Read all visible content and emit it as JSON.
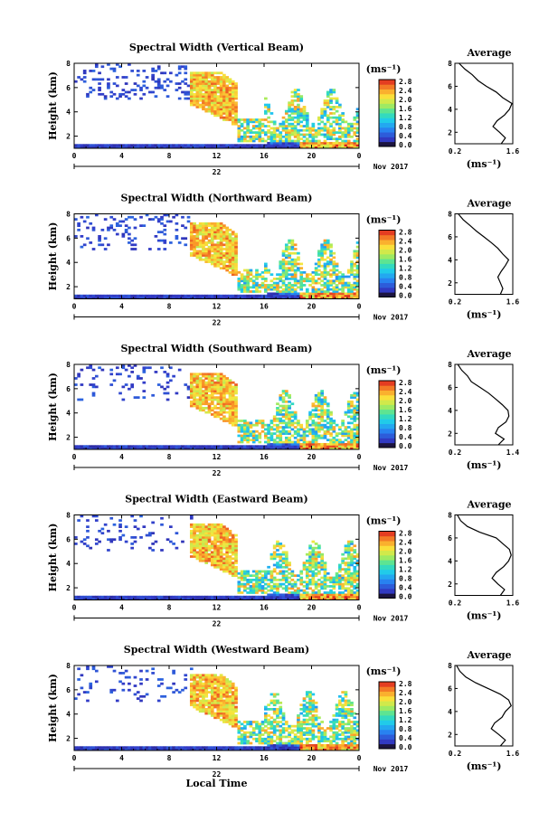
{
  "chart_data": [
    {
      "type": "heatmap",
      "title": "Spectral Width (Vertical Beam)",
      "ylabel": "Height (km)",
      "x_ticks": [
        "0",
        "4",
        "8",
        "12",
        "16",
        "20",
        "0"
      ],
      "xlim": [
        0,
        24
      ],
      "ylim": [
        1,
        8
      ],
      "y_ticks": [
        "2",
        "4",
        "6",
        "8"
      ],
      "date_label": "22",
      "month_label": "Nov 2017",
      "colorbar": {
        "unit": "(ms⁻¹)",
        "ticks": [
          "0.0",
          "0.4",
          "0.8",
          "1.2",
          "1.6",
          "2.0",
          "2.4",
          "2.8"
        ],
        "range": [
          0,
          2.8
        ]
      },
      "average": {
        "title": "Average",
        "xlabel": "(ms⁻¹)",
        "x_ticks": [
          "0.2",
          "1.6"
        ],
        "xlim": [
          0.2,
          1.6
        ],
        "y_ticks": [
          "2",
          "4",
          "6",
          "8"
        ],
        "profile": [
          [
            1.0,
            1.32
          ],
          [
            1.5,
            1.42
          ],
          [
            2.0,
            1.28
          ],
          [
            2.5,
            1.12
          ],
          [
            3.0,
            1.22
          ],
          [
            3.5,
            1.4
          ],
          [
            4.0,
            1.52
          ],
          [
            4.5,
            1.58
          ],
          [
            5.0,
            1.36
          ],
          [
            5.5,
            1.2
          ],
          [
            6.0,
            0.96
          ],
          [
            6.5,
            0.76
          ],
          [
            7.0,
            0.62
          ],
          [
            7.5,
            0.44
          ],
          [
            8.0,
            0.3
          ]
        ]
      }
    },
    {
      "type": "heatmap",
      "title": "Spectral Width (Northward Beam)",
      "ylabel": "Height (km)",
      "x_ticks": [
        "0",
        "4",
        "8",
        "12",
        "16",
        "20",
        "0"
      ],
      "xlim": [
        0,
        24
      ],
      "ylim": [
        1,
        8
      ],
      "y_ticks": [
        "2",
        "4",
        "6",
        "8"
      ],
      "date_label": "22",
      "month_label": "Nov 2017",
      "colorbar": {
        "unit": "(ms⁻¹)",
        "ticks": [
          "0.0",
          "0.4",
          "0.8",
          "1.2",
          "1.6",
          "2.0",
          "2.4",
          "2.8"
        ],
        "range": [
          0,
          2.8
        ]
      },
      "average": {
        "title": "Average",
        "xlabel": "(ms⁻¹)",
        "x_ticks": [
          "0.2",
          "1.6"
        ],
        "xlim": [
          0.2,
          1.6
        ],
        "y_ticks": [
          "2",
          "4",
          "6",
          "8"
        ],
        "profile": [
          [
            1.0,
            1.3
          ],
          [
            1.5,
            1.36
          ],
          [
            2.0,
            1.3
          ],
          [
            2.5,
            1.24
          ],
          [
            3.0,
            1.32
          ],
          [
            3.5,
            1.42
          ],
          [
            4.0,
            1.5
          ],
          [
            4.5,
            1.36
          ],
          [
            5.0,
            1.24
          ],
          [
            5.5,
            1.08
          ],
          [
            6.0,
            0.9
          ],
          [
            6.5,
            0.72
          ],
          [
            7.0,
            0.56
          ],
          [
            7.5,
            0.4
          ],
          [
            8.0,
            0.28
          ]
        ]
      }
    },
    {
      "type": "heatmap",
      "title": "Spectral Width (Southward Beam)",
      "ylabel": "Height (km)",
      "x_ticks": [
        "0",
        "4",
        "8",
        "12",
        "16",
        "20",
        "0"
      ],
      "xlim": [
        0,
        24
      ],
      "ylim": [
        1,
        8
      ],
      "y_ticks": [
        "2",
        "4",
        "6",
        "8"
      ],
      "date_label": "22",
      "month_label": "Nov 2017",
      "colorbar": {
        "unit": "(ms⁻¹)",
        "ticks": [
          "0.0",
          "0.4",
          "0.8",
          "1.2",
          "1.6",
          "2.0",
          "2.4",
          "2.8"
        ],
        "range": [
          0,
          2.8
        ]
      },
      "average": {
        "title": "Average",
        "xlabel": "(ms⁻¹)",
        "x_ticks": [
          "0.2",
          "1.4"
        ],
        "xlim": [
          0.2,
          1.4
        ],
        "y_ticks": [
          "2",
          "4",
          "6",
          "8"
        ],
        "profile": [
          [
            1.0,
            1.1
          ],
          [
            1.5,
            1.22
          ],
          [
            2.0,
            1.04
          ],
          [
            2.5,
            1.1
          ],
          [
            3.0,
            1.26
          ],
          [
            3.5,
            1.32
          ],
          [
            4.0,
            1.3
          ],
          [
            4.5,
            1.18
          ],
          [
            5.0,
            1.04
          ],
          [
            5.5,
            0.9
          ],
          [
            6.0,
            0.72
          ],
          [
            6.5,
            0.54
          ],
          [
            7.0,
            0.46
          ],
          [
            7.5,
            0.34
          ],
          [
            8.0,
            0.26
          ]
        ]
      }
    },
    {
      "type": "heatmap",
      "title": "Spectral Width (Eastward Beam)",
      "ylabel": "Height (km)",
      "x_ticks": [
        "0",
        "4",
        "8",
        "12",
        "16",
        "20",
        "0"
      ],
      "xlim": [
        0,
        24
      ],
      "ylim": [
        1,
        8
      ],
      "y_ticks": [
        "2",
        "4",
        "6",
        "8"
      ],
      "date_label": "22",
      "month_label": "Nov 2017",
      "colorbar": {
        "unit": "(ms⁻¹)",
        "ticks": [
          "0.0",
          "0.4",
          "0.8",
          "1.2",
          "1.6",
          "2.0",
          "2.4",
          "2.8"
        ],
        "range": [
          0,
          2.8
        ]
      },
      "average": {
        "title": "Average",
        "xlabel": "(ms⁻¹)",
        "x_ticks": [
          "0.2",
          "1.6"
        ],
        "xlim": [
          0.2,
          1.6
        ],
        "y_ticks": [
          "2",
          "4",
          "6",
          "8"
        ],
        "profile": [
          [
            1.0,
            1.3
          ],
          [
            1.5,
            1.4
          ],
          [
            2.0,
            1.24
          ],
          [
            2.5,
            1.1
          ],
          [
            3.0,
            1.2
          ],
          [
            3.5,
            1.38
          ],
          [
            4.0,
            1.5
          ],
          [
            4.5,
            1.56
          ],
          [
            5.0,
            1.52
          ],
          [
            5.5,
            1.36
          ],
          [
            6.0,
            1.2
          ],
          [
            6.5,
            0.8
          ],
          [
            7.0,
            0.5
          ],
          [
            7.5,
            0.34
          ],
          [
            8.0,
            0.26
          ]
        ]
      }
    },
    {
      "type": "heatmap",
      "title": "Spectral Width (Westward Beam)",
      "ylabel": "Height (km)",
      "xlabel": "Local Time",
      "x_ticks": [
        "0",
        "4",
        "8",
        "12",
        "16",
        "20",
        "0"
      ],
      "xlim": [
        0,
        24
      ],
      "ylim": [
        1,
        8
      ],
      "y_ticks": [
        "2",
        "4",
        "6",
        "8"
      ],
      "date_label": "22",
      "month_label": "Nov 2017",
      "colorbar": {
        "unit": "(ms⁻¹)",
        "ticks": [
          "0.0",
          "0.4",
          "0.8",
          "1.2",
          "1.6",
          "2.0",
          "2.4",
          "2.8"
        ],
        "range": [
          0,
          2.8
        ]
      },
      "average": {
        "title": "Average",
        "xlabel": "(ms⁻¹)",
        "x_ticks": [
          "0.2",
          "1.6"
        ],
        "xlim": [
          0.2,
          1.6
        ],
        "y_ticks": [
          "2",
          "4",
          "6",
          "8"
        ],
        "profile": [
          [
            1.0,
            1.3
          ],
          [
            1.5,
            1.42
          ],
          [
            2.0,
            1.26
          ],
          [
            2.5,
            1.08
          ],
          [
            3.0,
            1.16
          ],
          [
            3.5,
            1.34
          ],
          [
            4.0,
            1.42
          ],
          [
            4.5,
            1.56
          ],
          [
            5.0,
            1.5
          ],
          [
            5.5,
            1.3
          ],
          [
            6.0,
            1.0
          ],
          [
            6.5,
            0.7
          ],
          [
            7.0,
            0.46
          ],
          [
            7.5,
            0.32
          ],
          [
            8.0,
            0.24
          ]
        ]
      }
    }
  ]
}
